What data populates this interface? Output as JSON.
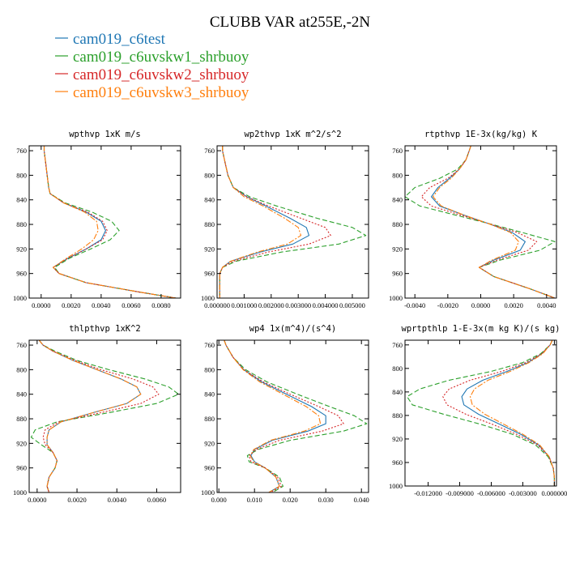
{
  "figure": {
    "title": "CLUBB VAR at255E,-2N"
  },
  "legend": [
    {
      "name": "cam019_c6test",
      "color": "#1f77b4",
      "dash": "solid"
    },
    {
      "name": "cam019_c6uvskw1_shrbuoy",
      "color": "#2ca02c",
      "dash": "dashed"
    },
    {
      "name": "cam019_c6uvskw2_shrbuoy",
      "color": "#d62728",
      "dash": "dotted"
    },
    {
      "name": "cam019_c6uvskw3_shrbuoy",
      "color": "#ff7f0e",
      "dash": "dashdot"
    }
  ],
  "chart_data": [
    {
      "type": "line",
      "title": "wpthvp   1xK m/s",
      "xlim": [
        -0.0008,
        0.0093
      ],
      "ylim": [
        1000,
        752
      ],
      "xticks": [
        "0.0000",
        "0.0020",
        "0.0040",
        "0.0060",
        "0.0080"
      ],
      "xtick_values": [
        0,
        0.002,
        0.004,
        0.006,
        0.008
      ],
      "yticks": [
        "760",
        "800",
        "840",
        "880",
        "920",
        "960",
        "1000"
      ],
      "ytick_values": [
        760,
        800,
        840,
        880,
        920,
        960,
        1000
      ],
      "y": [
        752,
        760,
        780,
        800,
        820,
        830,
        845,
        860,
        875,
        890,
        905,
        920,
        935,
        950,
        960,
        975,
        990,
        1000
      ],
      "series": [
        {
          "name": "cam019_c6test",
          "x": [
            0.0002,
            0.0002,
            0.0003,
            0.0004,
            0.0005,
            0.0006,
            0.0015,
            0.003,
            0.004,
            0.0043,
            0.004,
            0.003,
            0.0018,
            0.0008,
            0.0012,
            0.003,
            0.0065,
            0.009
          ]
        },
        {
          "name": "cam019_c6uvskw1_shrbuoy",
          "x": [
            0.0002,
            0.0002,
            0.0003,
            0.0004,
            0.0005,
            0.0006,
            0.0016,
            0.0034,
            0.0047,
            0.0052,
            0.0046,
            0.0033,
            0.0019,
            0.0009,
            0.0012,
            0.003,
            0.0065,
            0.009
          ]
        },
        {
          "name": "cam019_c6uvskw2_shrbuoy",
          "x": [
            0.0002,
            0.0002,
            0.0003,
            0.0004,
            0.0005,
            0.0006,
            0.0015,
            0.0031,
            0.0041,
            0.0044,
            0.0041,
            0.003,
            0.0018,
            0.0008,
            0.0012,
            0.003,
            0.0065,
            0.009
          ]
        },
        {
          "name": "cam019_c6uvskw3_shrbuoy",
          "x": [
            0.0002,
            0.0002,
            0.0003,
            0.0004,
            0.0005,
            0.0006,
            0.0015,
            0.0029,
            0.0037,
            0.0038,
            0.0035,
            0.0027,
            0.0017,
            0.0008,
            0.0012,
            0.003,
            0.0065,
            0.009
          ]
        }
      ]
    },
    {
      "type": "line",
      "title": "wp2thvp   1xK m^2/s^2",
      "xlim": [
        0,
        0.0056
      ],
      "ylim": [
        1000,
        752
      ],
      "xticks": [
        "0.000000",
        "0.001000",
        "0.002000",
        "0.003000",
        "0.004000",
        "0.005000"
      ],
      "xtick_values": [
        0,
        0.001,
        0.002,
        0.003,
        0.004,
        0.005
      ],
      "yticks": [
        "760",
        "800",
        "840",
        "880",
        "920",
        "960",
        "1000"
      ],
      "ytick_values": [
        760,
        800,
        840,
        880,
        920,
        960,
        1000
      ],
      "y": [
        752,
        760,
        780,
        800,
        820,
        835,
        850,
        870,
        885,
        898,
        912,
        925,
        940,
        950,
        960,
        975,
        990,
        1000
      ],
      "series": [
        {
          "name": "cam019_c6test",
          "x": [
            0.0002,
            0.0002,
            0.0003,
            0.0004,
            0.0006,
            0.0011,
            0.0018,
            0.0027,
            0.0033,
            0.0034,
            0.0028,
            0.0016,
            0.0005,
            0.0002,
            0.0001,
            0.0001,
            0.0001,
            0.0001
          ]
        },
        {
          "name": "cam019_c6uvskw1_shrbuoy",
          "x": [
            0.0002,
            0.0002,
            0.0003,
            0.0004,
            0.0006,
            0.0012,
            0.0022,
            0.0037,
            0.005,
            0.0055,
            0.0045,
            0.0024,
            0.0007,
            0.0002,
            0.0001,
            0.0001,
            0.0001,
            0.0001
          ]
        },
        {
          "name": "cam019_c6uvskw2_shrbuoy",
          "x": [
            0.0002,
            0.0002,
            0.0003,
            0.0004,
            0.0006,
            0.0011,
            0.0019,
            0.0031,
            0.004,
            0.0042,
            0.0034,
            0.0019,
            0.0006,
            0.0002,
            0.0001,
            0.0001,
            0.0001,
            0.0001
          ]
        },
        {
          "name": "cam019_c6uvskw3_shrbuoy",
          "x": [
            0.0002,
            0.0002,
            0.0003,
            0.0004,
            0.0006,
            0.001,
            0.0017,
            0.0025,
            0.003,
            0.0031,
            0.0026,
            0.0015,
            0.0005,
            0.0002,
            0.0001,
            0.0001,
            0.0001,
            0.0001
          ]
        }
      ]
    },
    {
      "type": "line",
      "title": "rtpthvp   1E-3x(kg/kg) K",
      "xlim": [
        -0.0046,
        0.0046
      ],
      "ylim": [
        1000,
        752
      ],
      "xticks": [
        "-0.0040",
        "-0.0020",
        "0.0000",
        "0.0020",
        "0.0040"
      ],
      "xtick_values": [
        -0.004,
        -0.002,
        0,
        0.002,
        0.004
      ],
      "yticks": [
        "760",
        "800",
        "840",
        "880",
        "920",
        "960",
        "1000"
      ],
      "ytick_values": [
        760,
        800,
        840,
        880,
        920,
        960,
        1000
      ],
      "y": [
        752,
        760,
        775,
        790,
        805,
        820,
        835,
        850,
        865,
        878,
        893,
        908,
        922,
        938,
        950,
        965,
        985,
        1000
      ],
      "series": [
        {
          "name": "cam019_c6test",
          "x": [
            -0.0006,
            -0.0007,
            -0.0009,
            -0.0013,
            -0.0019,
            -0.0026,
            -0.003,
            -0.0025,
            -0.001,
            0.0004,
            0.0019,
            0.0027,
            0.0024,
            0.0008,
            -0.0001,
            0.0008,
            0.003,
            0.0045
          ]
        },
        {
          "name": "cam019_c6uvskw1_shrbuoy",
          "x": [
            -0.0006,
            -0.0007,
            -0.0009,
            -0.0014,
            -0.0025,
            -0.004,
            -0.0046,
            -0.0037,
            -0.0015,
            0.0004,
            0.0025,
            0.0045,
            0.0036,
            0.0012,
            -0.0001,
            0.0008,
            0.003,
            0.0045
          ]
        },
        {
          "name": "cam019_c6uvskw2_shrbuoy",
          "x": [
            -0.0006,
            -0.0007,
            -0.0009,
            -0.0013,
            -0.002,
            -0.0031,
            -0.0036,
            -0.003,
            -0.0012,
            0.0004,
            0.0022,
            0.0034,
            0.0029,
            0.001,
            -0.0001,
            0.0008,
            0.003,
            0.0045
          ]
        },
        {
          "name": "cam019_c6uvskw3_shrbuoy",
          "x": [
            -0.0006,
            -0.0007,
            -0.0009,
            -0.0013,
            -0.0018,
            -0.0025,
            -0.0029,
            -0.0024,
            -0.001,
            0.0004,
            0.0018,
            0.0023,
            0.0021,
            0.0007,
            -0.0001,
            0.0008,
            0.003,
            0.0045
          ]
        }
      ]
    },
    {
      "type": "line",
      "title": "thlpthvp   1xK^2",
      "xlim": [
        -0.0004,
        0.0072
      ],
      "ylim": [
        1000,
        752
      ],
      "xticks": [
        "0.0000",
        "0.0020",
        "0.0040",
        "0.0060"
      ],
      "xtick_values": [
        0,
        0.002,
        0.004,
        0.006
      ],
      "yticks": [
        "760",
        "800",
        "840",
        "880",
        "920",
        "960",
        "1000"
      ],
      "ytick_values": [
        760,
        800,
        840,
        880,
        920,
        960,
        1000
      ],
      "y": [
        752,
        760,
        770,
        785,
        800,
        815,
        828,
        840,
        855,
        870,
        885,
        898,
        910,
        922,
        935,
        948,
        960,
        975,
        990,
        1000
      ],
      "series": [
        {
          "name": "cam019_c6test",
          "x": [
            0.0001,
            0.0003,
            0.0008,
            0.0018,
            0.003,
            0.0042,
            0.005,
            0.0052,
            0.0045,
            0.0028,
            0.0012,
            0.0006,
            0.0005,
            0.0005,
            0.0008,
            0.001,
            0.0009,
            0.0006,
            0.0005,
            0.0006
          ]
        },
        {
          "name": "cam019_c6uvskw1_shrbuoy",
          "x": [
            0.0001,
            0.0003,
            0.0009,
            0.002,
            0.0036,
            0.0054,
            0.0066,
            0.0071,
            0.006,
            0.0036,
            0.001,
            -0.0001,
            -0.0003,
            0.0002,
            0.0008,
            0.001,
            0.0009,
            0.0006,
            0.0005,
            0.0006
          ]
        },
        {
          "name": "cam019_c6uvskw2_shrbuoy",
          "x": [
            0.0001,
            0.0003,
            0.0008,
            0.0019,
            0.0032,
            0.0048,
            0.0058,
            0.0061,
            0.0052,
            0.0032,
            0.0011,
            0.0004,
            0.0003,
            0.0004,
            0.0008,
            0.001,
            0.0009,
            0.0006,
            0.0005,
            0.0006
          ]
        },
        {
          "name": "cam019_c6uvskw3_shrbuoy",
          "x": [
            0.0001,
            0.0003,
            0.0008,
            0.0018,
            0.003,
            0.0042,
            0.005,
            0.0052,
            0.0045,
            0.0028,
            0.0012,
            0.0006,
            0.0005,
            0.0005,
            0.0008,
            0.001,
            0.0009,
            0.0006,
            0.0005,
            0.0006
          ]
        }
      ]
    },
    {
      "type": "line",
      "title": "wp4   1x(m^4)/(s^4)",
      "xlim": [
        -0.0005,
        0.042
      ],
      "ylim": [
        1000,
        752
      ],
      "xticks": [
        "0.000",
        "0.010",
        "0.020",
        "0.030",
        "0.040"
      ],
      "xtick_values": [
        0,
        0.01,
        0.02,
        0.03,
        0.04
      ],
      "yticks": [
        "760",
        "800",
        "840",
        "880",
        "920",
        "960",
        "1000"
      ],
      "ytick_values": [
        760,
        800,
        840,
        880,
        920,
        960,
        1000
      ],
      "y": [
        752,
        760,
        780,
        800,
        820,
        840,
        860,
        875,
        888,
        900,
        915,
        930,
        940,
        950,
        960,
        975,
        990,
        1000
      ],
      "series": [
        {
          "name": "cam019_c6test",
          "x": [
            0.0015,
            0.002,
            0.004,
            0.007,
            0.012,
            0.019,
            0.026,
            0.03,
            0.03,
            0.025,
            0.015,
            0.01,
            0.009,
            0.01,
            0.013,
            0.016,
            0.017,
            0.014
          ]
        },
        {
          "name": "cam019_c6uvskw1_shrbuoy",
          "x": [
            0.0015,
            0.002,
            0.004,
            0.0075,
            0.0135,
            0.022,
            0.031,
            0.038,
            0.0415,
            0.035,
            0.02,
            0.011,
            0.008,
            0.0085,
            0.013,
            0.017,
            0.018,
            0.015
          ]
        },
        {
          "name": "cam019_c6uvskw2_shrbuoy",
          "x": [
            0.0015,
            0.002,
            0.004,
            0.007,
            0.0125,
            0.02,
            0.028,
            0.0335,
            0.035,
            0.029,
            0.017,
            0.0105,
            0.0085,
            0.009,
            0.013,
            0.0165,
            0.0175,
            0.0145
          ]
        },
        {
          "name": "cam019_c6uvskw3_shrbuoy",
          "x": [
            0.0015,
            0.002,
            0.004,
            0.0068,
            0.0115,
            0.018,
            0.0245,
            0.028,
            0.0285,
            0.024,
            0.0145,
            0.0098,
            0.0088,
            0.0098,
            0.013,
            0.016,
            0.017,
            0.014
          ]
        }
      ]
    },
    {
      "type": "line",
      "title": "wprtpthlp   1-E-3x(m kg K)/(s kg)",
      "xlim": [
        -0.0142,
        0.0002
      ],
      "ylim": [
        1000,
        752
      ],
      "xticks": [
        "-0.012000",
        "-0.009000",
        "-0.006000",
        "-0.003000",
        "0.000000"
      ],
      "xtick_values": [
        -0.012,
        -0.009,
        -0.006,
        -0.003,
        0
      ],
      "yticks": [
        "760",
        "800",
        "840",
        "880",
        "920",
        "960",
        "1000"
      ],
      "ytick_values": [
        760,
        800,
        840,
        880,
        920,
        960,
        1000
      ],
      "y": [
        752,
        760,
        775,
        790,
        805,
        820,
        835,
        848,
        862,
        878,
        895,
        912,
        930,
        950,
        970,
        985,
        1000
      ],
      "series": [
        {
          "name": "cam019_c6test",
          "x": [
            -0.0002,
            -0.0004,
            -0.0012,
            -0.0025,
            -0.0045,
            -0.0068,
            -0.0083,
            -0.0088,
            -0.0086,
            -0.0072,
            -0.0052,
            -0.0032,
            -0.0015,
            -0.0005,
            -0.0001,
            0.0,
            0.0
          ]
        },
        {
          "name": "cam019_c6uvskw1_shrbuoy",
          "x": [
            -0.0002,
            -0.0004,
            -0.0013,
            -0.003,
            -0.006,
            -0.01,
            -0.0128,
            -0.014,
            -0.0135,
            -0.0105,
            -0.007,
            -0.004,
            -0.0018,
            -0.0006,
            -0.0001,
            0.0,
            0.0
          ]
        },
        {
          "name": "cam019_c6uvskw2_shrbuoy",
          "x": [
            -0.0002,
            -0.0004,
            -0.0012,
            -0.0027,
            -0.005,
            -0.008,
            -0.01,
            -0.0106,
            -0.0102,
            -0.0084,
            -0.0059,
            -0.0036,
            -0.0016,
            -0.0005,
            -0.0001,
            0.0,
            0.0
          ]
        },
        {
          "name": "cam019_c6uvskw3_shrbuoy",
          "x": [
            -0.0002,
            -0.0004,
            -0.0011,
            -0.0024,
            -0.0042,
            -0.0063,
            -0.0076,
            -0.008,
            -0.0078,
            -0.0066,
            -0.0048,
            -0.003,
            -0.0014,
            -0.0005,
            -0.0001,
            0.0,
            0.0
          ]
        }
      ]
    }
  ]
}
